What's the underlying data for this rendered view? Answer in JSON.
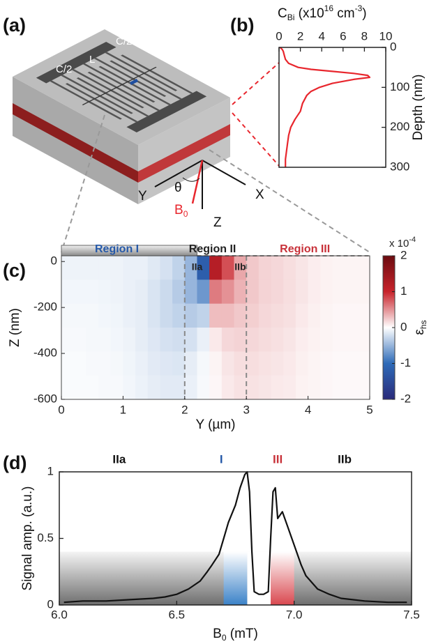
{
  "panel_labels": [
    "(a)",
    "(b)",
    "(c)",
    "(d)"
  ],
  "schematic": {
    "labels": [
      "C/2",
      "L",
      "C/2",
      "Y",
      "θ",
      "X",
      "Z"
    ],
    "b0": [
      "B",
      "0"
    ]
  },
  "chart_data": [
    {
      "type": "line",
      "x_label_parts": [
        "C",
        "Bi",
        " (x10",
        "16",
        " cm",
        "-3",
        ")"
      ],
      "y_label": "Depth (nm)",
      "xlim": [
        0,
        10
      ],
      "xticks": [
        0,
        2,
        4,
        6,
        8,
        10
      ],
      "ylim": [
        0,
        300
      ],
      "yticks": [
        0,
        100,
        200,
        300
      ],
      "y_inverted": true,
      "x_axis_top": true,
      "x": [
        0.1,
        0.3,
        0.4,
        0.5,
        0.6,
        0.9,
        1.8,
        3,
        5,
        7,
        8.3,
        8.5,
        7,
        5,
        3.8,
        3,
        2.6,
        2.2,
        2,
        1.5,
        1.1,
        0.9,
        0.8,
        0.7,
        0.6,
        0.6
      ],
      "series": [
        {
          "color": "#e8262d",
          "values": [
            0,
            5,
            10,
            20,
            30,
            40,
            50,
            55,
            60,
            65,
            70,
            75,
            80,
            90,
            100,
            110,
            120,
            140,
            160,
            180,
            200,
            220,
            240,
            260,
            280,
            300
          ]
        }
      ]
    },
    {
      "type": "heatmap",
      "x_label": "Y (µm)",
      "y_label": "Z (nm)",
      "xlim": [
        0,
        5
      ],
      "xticks": [
        0,
        1,
        2,
        3,
        4,
        5
      ],
      "ylim": [
        -600,
        25
      ],
      "yticks": [
        0,
        -200,
        -400,
        -600
      ],
      "dividers": [
        2,
        3
      ],
      "regions": [
        {
          "text": "Region I",
          "color": "#2659a8"
        },
        {
          "text": "Region II",
          "color": "#222222"
        },
        {
          "text": "Region III",
          "color": "#c8323a"
        }
      ],
      "sub_regions": [
        "IIa",
        "IIb"
      ],
      "z": [
        [
          -0.08,
          -0.08,
          -0.08,
          -0.08,
          -0.08,
          -0.1,
          -0.1,
          -0.15,
          -0.2,
          -0.3,
          -0.5,
          -1.2,
          1.2,
          0.8,
          0.4,
          0.25,
          0.2,
          0.18,
          0.15,
          0.12,
          0.08,
          0.06,
          0.05,
          0.05,
          0.05
        ],
        [
          -0.06,
          -0.06,
          -0.06,
          -0.07,
          -0.08,
          -0.1,
          -0.12,
          -0.18,
          -0.25,
          -0.35,
          -0.5,
          -0.7,
          0.6,
          0.5,
          0.35,
          0.25,
          0.2,
          0.18,
          0.15,
          0.12,
          0.08,
          0.06,
          0.05,
          0.05,
          0.05
        ],
        [
          -0.05,
          -0.05,
          -0.05,
          -0.06,
          -0.07,
          -0.1,
          -0.12,
          -0.18,
          -0.25,
          -0.3,
          -0.35,
          -0.3,
          0.3,
          0.3,
          0.25,
          0.22,
          0.18,
          0.16,
          0.14,
          0.1,
          0.07,
          0.05,
          0.04,
          0.04,
          0.04
        ],
        [
          -0.04,
          -0.04,
          -0.05,
          -0.05,
          -0.06,
          -0.08,
          -0.12,
          -0.16,
          -0.2,
          -0.22,
          -0.2,
          -0.1,
          0.1,
          0.18,
          0.2,
          0.18,
          0.16,
          0.14,
          0.12,
          0.08,
          0.06,
          0.05,
          0.04,
          0.04,
          0.04
        ],
        [
          -0.03,
          -0.03,
          -0.04,
          -0.04,
          -0.05,
          -0.07,
          -0.1,
          -0.14,
          -0.16,
          -0.17,
          -0.12,
          -0.05,
          0.05,
          0.12,
          0.15,
          0.15,
          0.13,
          0.12,
          0.1,
          0.07,
          0.05,
          0.04,
          0.03,
          0.03,
          0.03
        ],
        [
          -0.03,
          -0.03,
          -0.03,
          -0.04,
          -0.04,
          -0.06,
          -0.09,
          -0.12,
          -0.14,
          -0.14,
          -0.1,
          -0.04,
          0.04,
          0.1,
          0.13,
          0.13,
          0.12,
          0.1,
          0.09,
          0.06,
          0.05,
          0.04,
          0.03,
          0.03,
          0.03
        ]
      ],
      "colorbar": {
        "lim": [
          -2,
          2
        ],
        "ticks": [
          -2,
          -1,
          0,
          1,
          2
        ],
        "colors": [
          "#2a2a7a",
          "#2e6bb8",
          "#ffffff",
          "#c8232b",
          "#6b0c10"
        ],
        "label": "ε",
        "label_sub": "hs",
        "scale_parts": [
          "x 10",
          "-4"
        ]
      }
    },
    {
      "type": "line",
      "x_label_parts": [
        "B",
        "0",
        " (mT)"
      ],
      "y_label": "Signal amp. (a.u.)",
      "xlim": [
        6,
        7.5
      ],
      "xticks": [
        {
          "value": 6,
          "label": "6.0"
        },
        6.5,
        {
          "value": 7,
          "label": "7.0"
        },
        7.5
      ],
      "ylim": [
        0,
        1
      ],
      "yticks": [
        0,
        0.5,
        1
      ],
      "regions": [
        {
          "text": "IIa",
          "color": "#111111"
        },
        {
          "text": "I",
          "color": "#2659a8"
        },
        {
          "text": "III",
          "color": "#c8323a"
        },
        {
          "text": "IIb",
          "color": "#111111"
        }
      ],
      "bands": [
        {
          "from": 6.7,
          "to": 6.8,
          "color": "#3b82c8"
        },
        {
          "from": 6.9,
          "to": 7,
          "color": "#d9484f"
        }
      ],
      "x": [
        6.02,
        6.1,
        6.2,
        6.3,
        6.4,
        6.45,
        6.5,
        6.55,
        6.6,
        6.63,
        6.65,
        6.68,
        6.7,
        6.72,
        6.75,
        6.77,
        6.79,
        6.8,
        6.81,
        6.82,
        6.83,
        6.85,
        6.87,
        6.89,
        6.9,
        6.91,
        6.92,
        6.93,
        6.95,
        6.97,
        7,
        7.03,
        7.05,
        7.1,
        7.15,
        7.2,
        7.3,
        7.4,
        7.48
      ],
      "series": [
        {
          "color": "#111111",
          "values": [
            0.02,
            0.03,
            0.03,
            0.04,
            0.05,
            0.06,
            0.08,
            0.12,
            0.18,
            0.25,
            0.3,
            0.38,
            0.5,
            0.62,
            0.75,
            0.88,
            0.98,
            1,
            0.85,
            0.4,
            0.1,
            0.08,
            0.08,
            0.1,
            0.5,
            0.85,
            0.88,
            0.65,
            0.7,
            0.6,
            0.45,
            0.3,
            0.22,
            0.12,
            0.08,
            0.05,
            0.03,
            0.02,
            0.02
          ]
        }
      ]
    }
  ]
}
